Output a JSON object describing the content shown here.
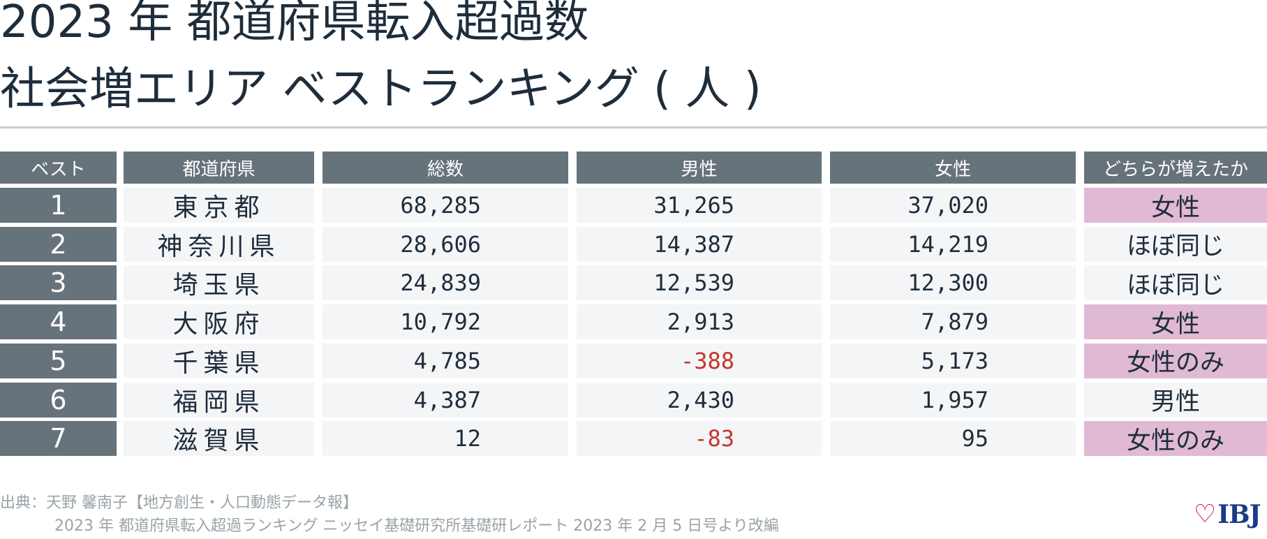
{
  "title": {
    "line1": "2023 年 都道府県転入超過数",
    "line2": "社会増エリア ベストランキング ( 人 )"
  },
  "chart_data": {
    "type": "table",
    "columns": [
      "ベスト",
      "都道府県",
      "総数",
      "男性",
      "女性",
      "どちらが増えたか"
    ],
    "rows": [
      [
        "1",
        "東京都",
        "68,285",
        "31,265",
        "37,020",
        "女性"
      ],
      [
        "2",
        "神奈川県",
        "28,606",
        "14,387",
        "14,219",
        "ほぼ同じ"
      ],
      [
        "3",
        "埼玉県",
        "24,839",
        "12,539",
        "12,300",
        "ほぼ同じ"
      ],
      [
        "4",
        "大阪府",
        "10,792",
        "2,913",
        "7,879",
        "女性"
      ],
      [
        "5",
        "千葉県",
        "4,785",
        "-388",
        "5,173",
        "女性のみ"
      ],
      [
        "6",
        "福岡県",
        "4,387",
        "2,430",
        "1,957",
        "男性"
      ],
      [
        "7",
        "滋賀県",
        "12",
        "-83",
        "95",
        "女性のみ"
      ]
    ],
    "highlighted_answers": [
      "女性",
      "女性のみ"
    ]
  },
  "colors": {
    "header_bg": "#67737b",
    "cell_bg": "#f4f5f7",
    "highlight_bg": "#e0b9d4",
    "negative_text": "#c0392b",
    "title_text": "#1e2d3b"
  },
  "source": {
    "line1": "出典：天野 馨南子【地方創生・人口動態データ報】",
    "line2": "2023 年 都道府県転入超過ランキング ニッセイ基礎研究所基礎研レポート 2023 年 2 月 5 日号より改編"
  },
  "logo": {
    "text": "IBJ",
    "icon": "heart-icon"
  }
}
